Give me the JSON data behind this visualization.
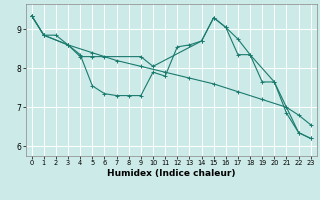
{
  "xlabel": "Humidex (Indice chaleur)",
  "background_color": "#cceae7",
  "line_color": "#1a7a6e",
  "grid_color": "#ffffff",
  "xlim": [
    -0.5,
    23.5
  ],
  "ylim": [
    5.75,
    9.65
  ],
  "xticks": [
    0,
    1,
    2,
    3,
    4,
    5,
    6,
    7,
    8,
    9,
    10,
    11,
    12,
    13,
    14,
    15,
    16,
    17,
    18,
    19,
    20,
    21,
    22,
    23
  ],
  "yticks": [
    6,
    7,
    8,
    9
  ],
  "lines": [
    {
      "x": [
        0,
        1,
        3,
        5,
        7,
        9,
        11,
        13,
        15,
        17,
        19,
        21,
        22,
        23
      ],
      "y": [
        9.35,
        8.85,
        8.6,
        8.4,
        8.2,
        8.05,
        7.9,
        7.75,
        7.6,
        7.4,
        7.2,
        7.0,
        6.8,
        6.55
      ]
    },
    {
      "x": [
        0,
        1,
        2,
        3,
        4,
        5,
        6,
        7,
        8,
        9,
        10,
        11,
        12,
        13,
        14,
        15,
        16,
        17,
        18,
        19,
        20,
        21,
        22,
        23
      ],
      "y": [
        9.35,
        8.85,
        8.85,
        8.6,
        8.35,
        7.55,
        7.35,
        7.3,
        7.3,
        7.3,
        7.9,
        7.8,
        8.55,
        8.6,
        8.7,
        9.3,
        9.05,
        8.75,
        8.35,
        7.65,
        7.65,
        6.85,
        6.35,
        6.2
      ]
    },
    {
      "x": [
        0,
        1,
        3,
        4,
        5,
        6,
        9,
        10,
        14,
        15,
        16,
        17,
        18,
        20,
        22,
        23
      ],
      "y": [
        9.35,
        8.85,
        8.6,
        8.3,
        8.3,
        8.3,
        8.3,
        8.05,
        8.7,
        9.3,
        9.05,
        8.35,
        8.35,
        7.65,
        6.35,
        6.2
      ]
    }
  ]
}
